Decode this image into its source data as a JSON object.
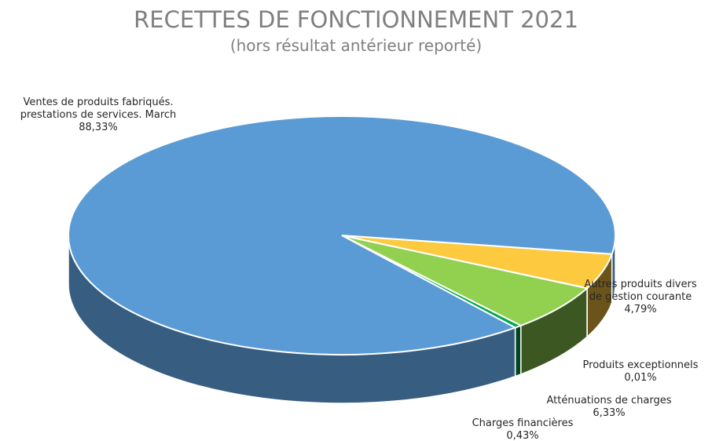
{
  "chart_data": {
    "type": "pie",
    "title": "RECETTES DE FONCTIONNEMENT 2021",
    "subtitle": "(hors résultat antérieur reporté)",
    "categories": [
      "Autres produits divers de gestion courante",
      "Produits exceptionnels",
      "Atténuations de charges",
      "Charges financières",
      "Ventes de produits fabriqués. prestations de services. March"
    ],
    "values": [
      4.79,
      0.01,
      6.33,
      0.43,
      88.33
    ],
    "value_labels": [
      "4,79%",
      "0,01%",
      "6,33%",
      "0,43%",
      "88,33%"
    ],
    "colors": [
      "#fcc93f",
      "#a0a0a0",
      "#92d050",
      "#00a84f",
      "#5b9bd5"
    ]
  }
}
